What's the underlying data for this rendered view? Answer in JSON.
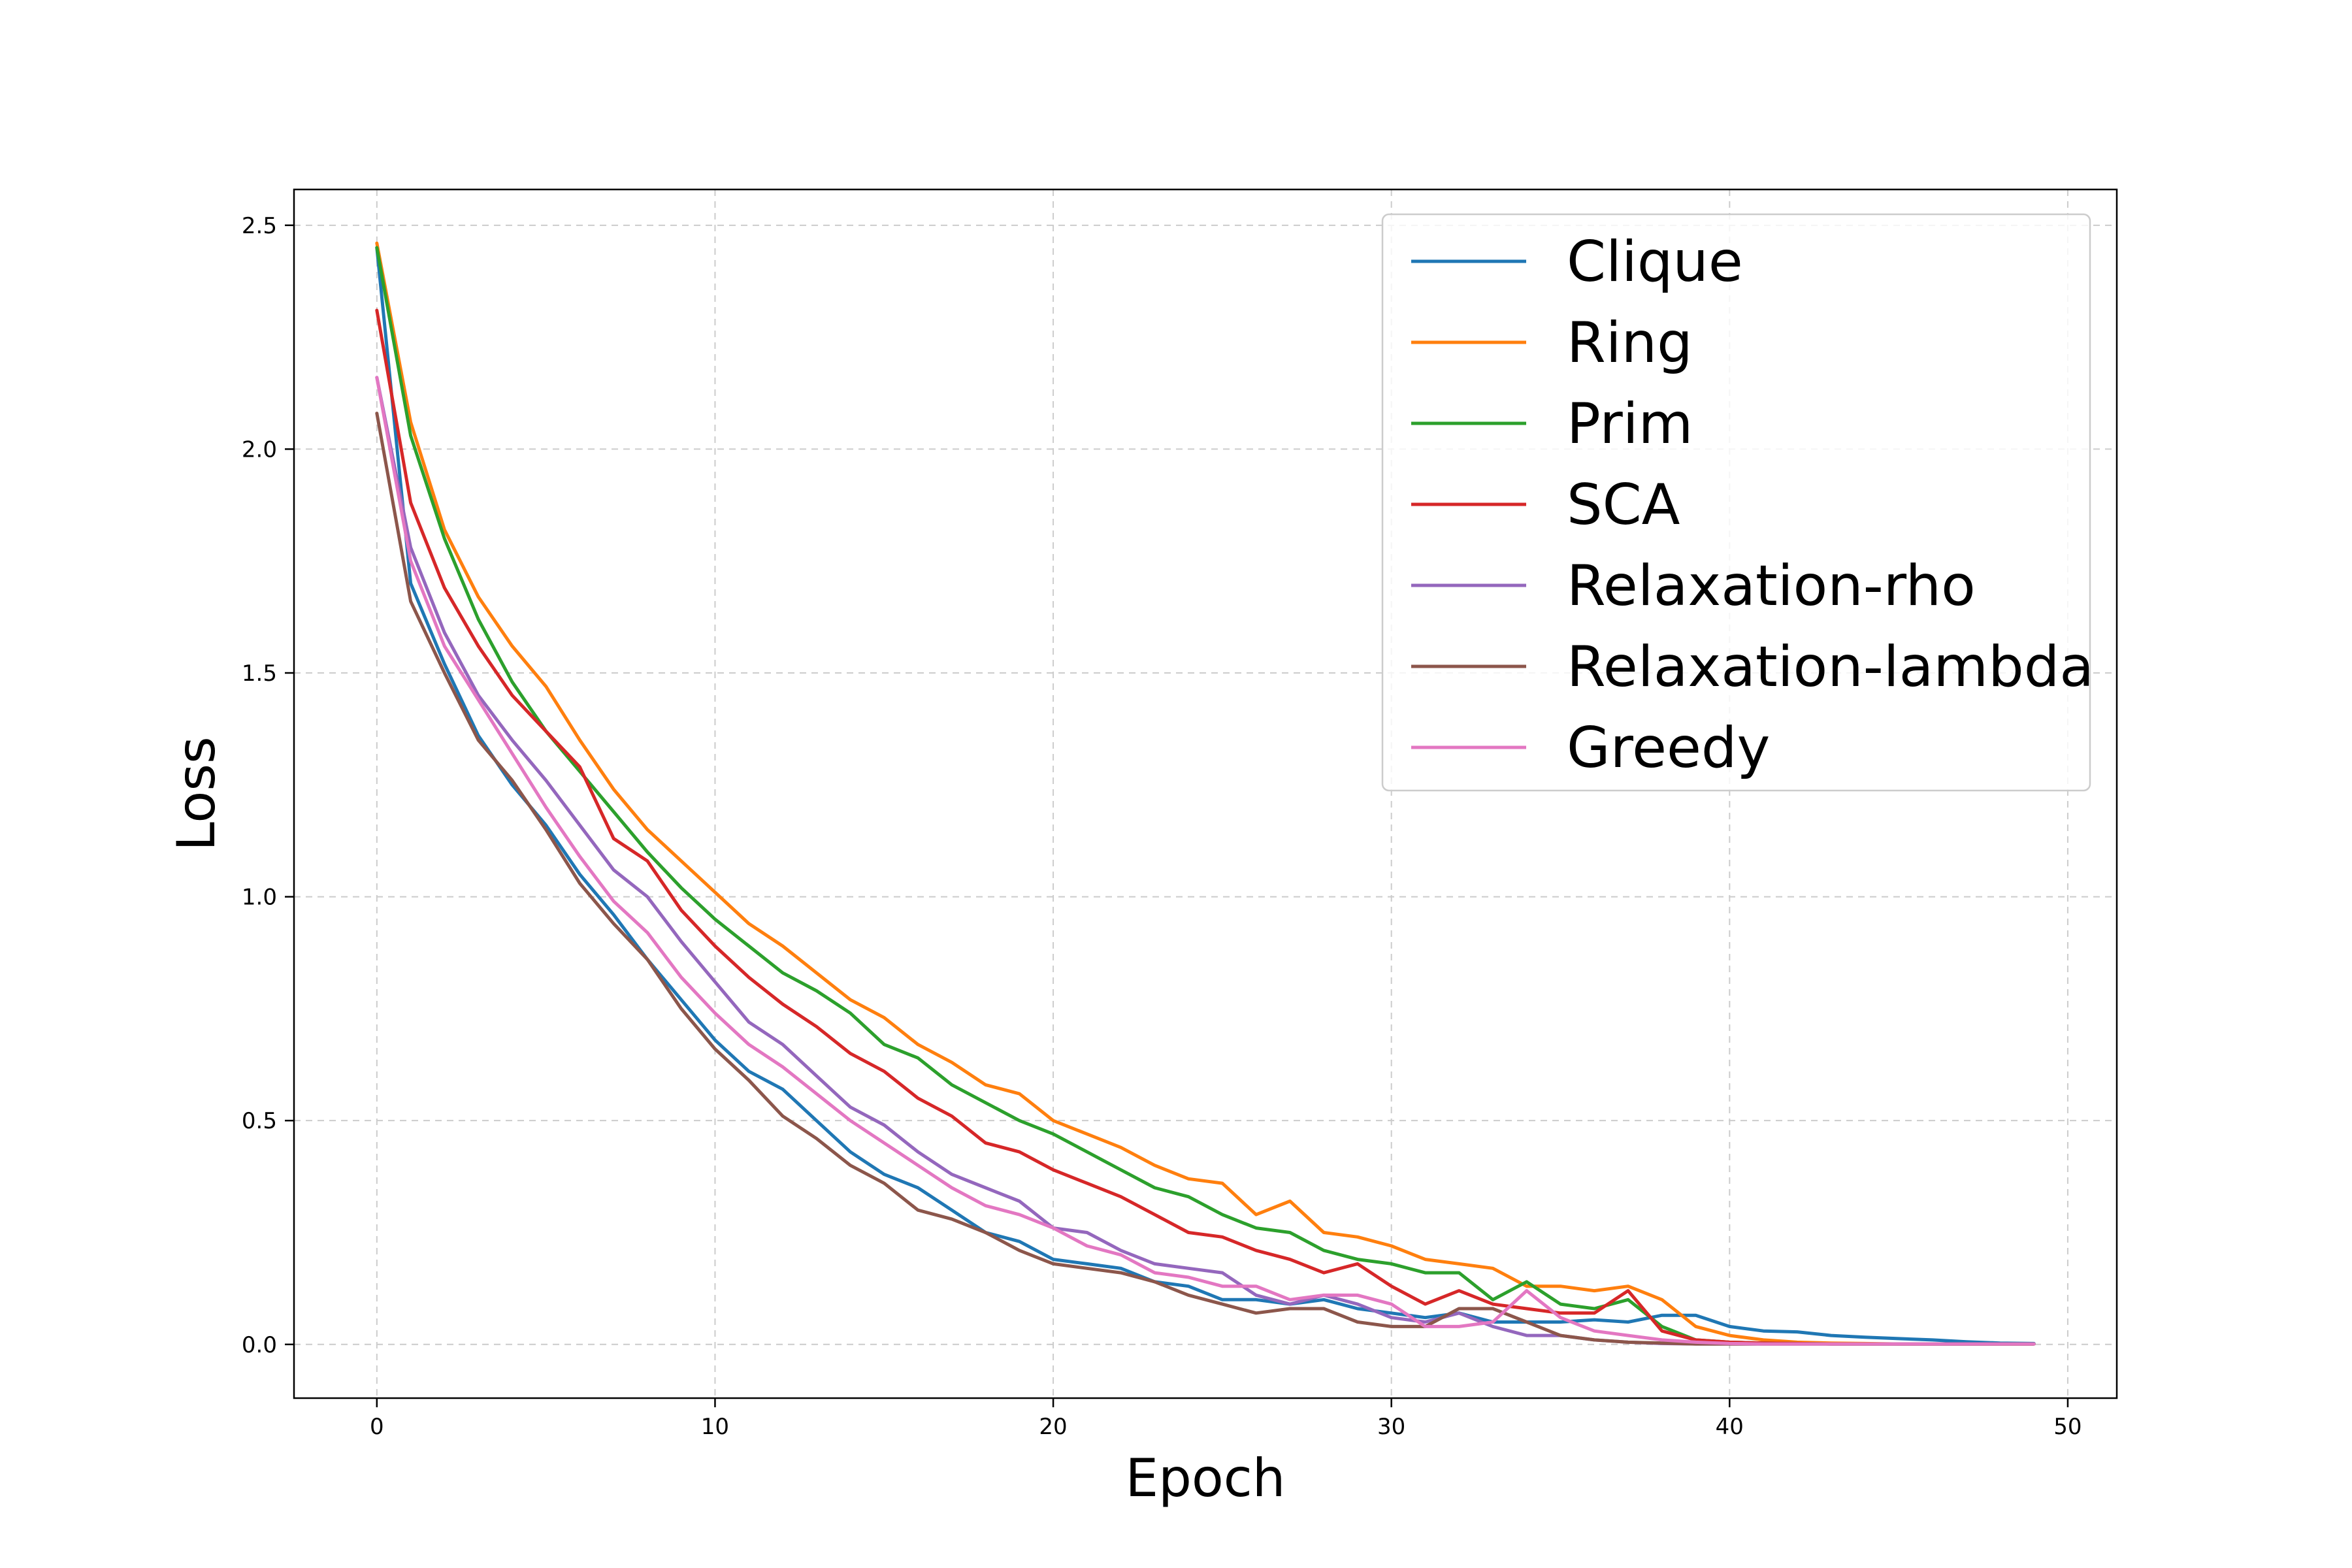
{
  "chart_data": {
    "type": "line",
    "title": "",
    "xlabel": "Epoch",
    "ylabel": "Loss",
    "xlim": [
      -2.45,
      51.45
    ],
    "ylim": [
      -0.12,
      2.58
    ],
    "xticks": [
      0,
      10,
      20,
      30,
      40,
      50
    ],
    "yticks": [
      0.0,
      0.5,
      1.0,
      1.5,
      2.0,
      2.5
    ],
    "xtick_labels": [
      "0",
      "10",
      "20",
      "30",
      "40",
      "50"
    ],
    "ytick_labels": [
      "0.0",
      "0.5",
      "1.0",
      "1.5",
      "2.0",
      "2.5"
    ],
    "grid": true,
    "legend_position": "top-right",
    "x": [
      0,
      1,
      2,
      3,
      4,
      5,
      6,
      7,
      8,
      9,
      10,
      11,
      12,
      13,
      14,
      15,
      16,
      17,
      18,
      19,
      20,
      21,
      22,
      23,
      24,
      25,
      26,
      27,
      28,
      29,
      30,
      31,
      32,
      33,
      34,
      35,
      36,
      37,
      38,
      39,
      40,
      41,
      42,
      43,
      44,
      45,
      46,
      47,
      48,
      49
    ],
    "series": [
      {
        "name": "Clique",
        "color": "#1f77b4",
        "values": [
          2.45,
          1.7,
          1.52,
          1.36,
          1.25,
          1.16,
          1.05,
          0.96,
          0.86,
          0.77,
          0.68,
          0.61,
          0.57,
          0.5,
          0.43,
          0.38,
          0.35,
          0.3,
          0.25,
          0.23,
          0.19,
          0.18,
          0.17,
          0.14,
          0.13,
          0.1,
          0.1,
          0.09,
          0.1,
          0.08,
          0.07,
          0.06,
          0.07,
          0.05,
          0.05,
          0.05,
          0.055,
          0.05,
          0.065,
          0.065,
          0.04,
          0.03,
          0.028,
          0.02,
          0.016,
          0.013,
          0.01,
          0.006,
          0.003,
          0.002
        ]
      },
      {
        "name": "Ring",
        "color": "#ff7f0e",
        "values": [
          2.46,
          2.06,
          1.82,
          1.67,
          1.56,
          1.47,
          1.35,
          1.24,
          1.15,
          1.08,
          1.01,
          0.94,
          0.89,
          0.83,
          0.77,
          0.73,
          0.67,
          0.63,
          0.58,
          0.56,
          0.5,
          0.47,
          0.44,
          0.4,
          0.37,
          0.36,
          0.29,
          0.32,
          0.25,
          0.24,
          0.22,
          0.19,
          0.18,
          0.17,
          0.13,
          0.13,
          0.12,
          0.13,
          0.1,
          0.04,
          0.02,
          0.01,
          0.005,
          0.003,
          0.002,
          0.001,
          0.001,
          0.001,
          0.001,
          0.001
        ]
      },
      {
        "name": "Prim",
        "color": "#2ca02c",
        "values": [
          2.45,
          2.03,
          1.8,
          1.62,
          1.48,
          1.37,
          1.28,
          1.19,
          1.1,
          1.02,
          0.95,
          0.89,
          0.83,
          0.79,
          0.74,
          0.67,
          0.64,
          0.58,
          0.54,
          0.5,
          0.47,
          0.43,
          0.39,
          0.35,
          0.33,
          0.29,
          0.26,
          0.25,
          0.21,
          0.19,
          0.18,
          0.16,
          0.16,
          0.1,
          0.14,
          0.09,
          0.08,
          0.1,
          0.04,
          0.01,
          0.005,
          0.003,
          0.002,
          0.001,
          0.001,
          0.001,
          0.001,
          0.001,
          0.001,
          0.001
        ]
      },
      {
        "name": "SCA",
        "color": "#d62728",
        "values": [
          2.31,
          1.88,
          1.69,
          1.56,
          1.45,
          1.37,
          1.29,
          1.13,
          1.08,
          0.97,
          0.89,
          0.82,
          0.76,
          0.71,
          0.65,
          0.61,
          0.55,
          0.51,
          0.45,
          0.43,
          0.39,
          0.36,
          0.33,
          0.29,
          0.25,
          0.24,
          0.21,
          0.19,
          0.16,
          0.18,
          0.13,
          0.09,
          0.12,
          0.09,
          0.08,
          0.07,
          0.07,
          0.12,
          0.03,
          0.01,
          0.005,
          0.003,
          0.002,
          0.001,
          0.001,
          0.001,
          0.001,
          0.001,
          0.001,
          0.001
        ]
      },
      {
        "name": "Relaxation-rho",
        "color": "#9467bd",
        "values": [
          2.16,
          1.78,
          1.59,
          1.45,
          1.35,
          1.26,
          1.16,
          1.06,
          1.0,
          0.9,
          0.81,
          0.72,
          0.67,
          0.6,
          0.53,
          0.49,
          0.43,
          0.38,
          0.35,
          0.32,
          0.26,
          0.25,
          0.21,
          0.18,
          0.17,
          0.16,
          0.11,
          0.09,
          0.11,
          0.09,
          0.06,
          0.05,
          0.07,
          0.04,
          0.02,
          0.02,
          0.01,
          0.005,
          0.002,
          0.001,
          0.001,
          0.001,
          0.001,
          0.001,
          0.001,
          0.001,
          0.001,
          0.001,
          0.001,
          0.001
        ]
      },
      {
        "name": "Relaxation-lambda",
        "color": "#8c564b",
        "values": [
          2.08,
          1.66,
          1.5,
          1.35,
          1.26,
          1.15,
          1.03,
          0.94,
          0.86,
          0.75,
          0.66,
          0.59,
          0.51,
          0.46,
          0.4,
          0.36,
          0.3,
          0.28,
          0.25,
          0.21,
          0.18,
          0.17,
          0.16,
          0.14,
          0.11,
          0.09,
          0.07,
          0.08,
          0.08,
          0.05,
          0.04,
          0.04,
          0.08,
          0.08,
          0.05,
          0.02,
          0.01,
          0.005,
          0.003,
          0.001,
          0.001,
          0.001,
          0.001,
          0.001,
          0.001,
          0.001,
          0.001,
          0.001,
          0.001,
          0.001
        ]
      },
      {
        "name": "Greedy",
        "color": "#e377c2",
        "values": [
          2.16,
          1.75,
          1.56,
          1.44,
          1.32,
          1.2,
          1.09,
          0.99,
          0.92,
          0.82,
          0.74,
          0.67,
          0.62,
          0.56,
          0.5,
          0.45,
          0.4,
          0.35,
          0.31,
          0.29,
          0.26,
          0.22,
          0.2,
          0.16,
          0.15,
          0.13,
          0.13,
          0.1,
          0.11,
          0.11,
          0.09,
          0.04,
          0.04,
          0.05,
          0.12,
          0.06,
          0.03,
          0.02,
          0.01,
          0.005,
          0.002,
          0.001,
          0.001,
          0.001,
          0.001,
          0.001,
          0.001,
          0.001,
          0.001,
          0.001
        ]
      }
    ]
  }
}
